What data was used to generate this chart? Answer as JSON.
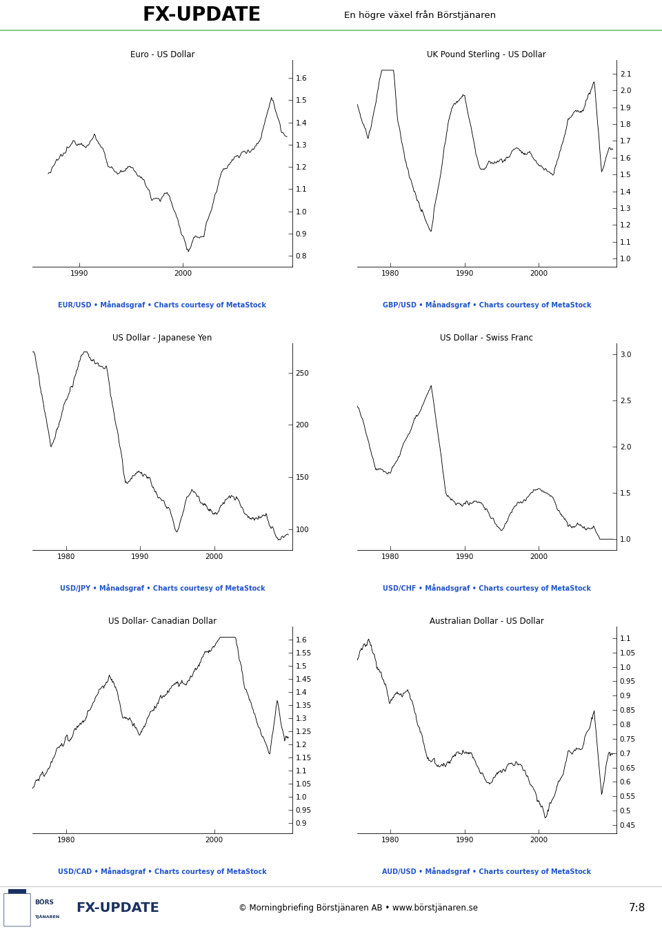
{
  "header_bg": "#3db53d",
  "header_text1": "Börstjänaren ",
  "header_text2": "FX-UPDATE",
  "header_text3": "En högre växel från Börstjänaren",
  "footer_text": "© Morningbriefing Börstjänaren AB • www.börstjänaren.se",
  "footer_page": "7:8",
  "caption_color": "#2255cc",
  "line_color": "#000000",
  "bg_color": "#ffffff",
  "charts": [
    {
      "title": "Euro - US Dollar",
      "caption": "EUR/USD • Månadsgraf • Charts courtesy of MetaStock",
      "yticks": [
        0.8,
        0.9,
        1.0,
        1.1,
        1.2,
        1.3,
        1.4,
        1.5,
        1.6
      ],
      "ylim": [
        0.75,
        1.68
      ],
      "xticks": [
        1990,
        2000
      ],
      "xlim": [
        1985.5,
        2010.5
      ],
      "row": 0,
      "col": 0
    },
    {
      "title": "UK Pound Sterling - US Dollar",
      "caption": "GBP/USD • Månadsgraf • Charts courtesy of MetaStock",
      "yticks": [
        1.0,
        1.1,
        1.2,
        1.3,
        1.4,
        1.5,
        1.6,
        1.7,
        1.8,
        1.9,
        2.0,
        2.1
      ],
      "ylim": [
        0.95,
        2.18
      ],
      "xticks": [
        1980,
        1990,
        2000
      ],
      "xlim": [
        1975.5,
        2010.5
      ],
      "row": 0,
      "col": 1
    },
    {
      "title": "US Dollar - Japanese Yen",
      "caption": "USD/JPY • Månadsgraf • Charts courtesy of MetaStock",
      "yticks": [
        100,
        150,
        200,
        250
      ],
      "ylim": [
        80,
        278
      ],
      "xticks": [
        1980,
        1990,
        2000
      ],
      "xlim": [
        1975.5,
        2010.5
      ],
      "row": 1,
      "col": 0
    },
    {
      "title": "US Dollar - Swiss Franc",
      "caption": "USD/CHF • Månadsgraf • Charts courtesy of MetaStock",
      "yticks": [
        1.0,
        1.5,
        2.0,
        2.5,
        3.0
      ],
      "ylim": [
        0.88,
        3.12
      ],
      "xticks": [
        1980,
        1990,
        2000
      ],
      "xlim": [
        1975.5,
        2010.5
      ],
      "row": 1,
      "col": 1
    },
    {
      "title": "US Dollar- Canadian Dollar",
      "caption": "USD/CAD • Månadsgraf • Charts courtesy of MetaStock",
      "yticks": [
        0.9,
        0.95,
        1.0,
        1.05,
        1.1,
        1.15,
        1.2,
        1.25,
        1.3,
        1.35,
        1.4,
        1.45,
        1.5,
        1.55,
        1.6
      ],
      "ylim": [
        0.86,
        1.65
      ],
      "xticks": [
        1980,
        2000
      ],
      "xlim": [
        1975.5,
        2010.5
      ],
      "row": 2,
      "col": 0
    },
    {
      "title": "Australian Dollar - US Dollar",
      "caption": "AUD/USD • Månadsgraf • Charts courtesy of MetaStock",
      "yticks": [
        0.45,
        0.5,
        0.55,
        0.6,
        0.65,
        0.7,
        0.75,
        0.8,
        0.85,
        0.9,
        0.95,
        1.0,
        1.05,
        1.1
      ],
      "ylim": [
        0.42,
        1.14
      ],
      "xticks": [
        1980,
        1990,
        2000
      ],
      "xlim": [
        1975.5,
        2010.5
      ],
      "row": 2,
      "col": 1
    }
  ]
}
